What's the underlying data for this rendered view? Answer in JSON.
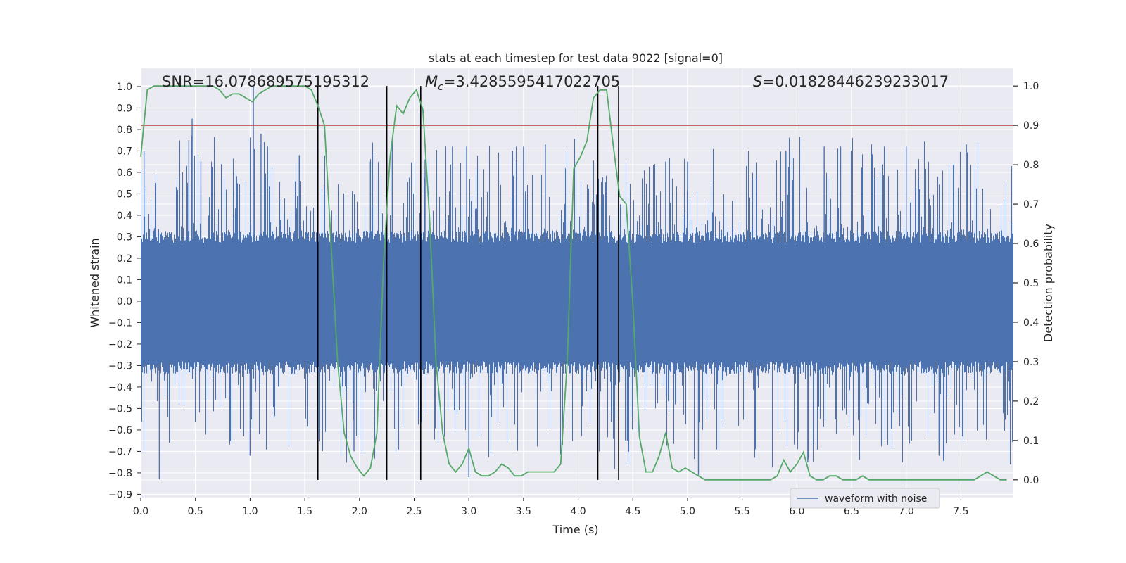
{
  "chart_data": {
    "type": "line",
    "title": "stats at each timestep for test data 9022 [signal=0]",
    "xlabel": "Time (s)",
    "ylabel_left": "Whitened strain",
    "ylabel_right": "Detection probability",
    "xlim": [
      0,
      7.98
    ],
    "ylim_left": [
      -0.915,
      1.085
    ],
    "ylim_right": [
      -0.045,
      1.045
    ],
    "grid": true,
    "x_ticks": [
      "0.0",
      "0.5",
      "1.0",
      "1.5",
      "2.0",
      "2.5",
      "3.0",
      "3.5",
      "4.0",
      "4.5",
      "5.0",
      "5.5",
      "6.0",
      "6.5",
      "7.0",
      "7.5"
    ],
    "x_tick_values": [
      0,
      0.5,
      1,
      1.5,
      2,
      2.5,
      3,
      3.5,
      4,
      4.5,
      5,
      5.5,
      6,
      6.5,
      7,
      7.5
    ],
    "y_left_ticks": [
      "1.0",
      "0.9",
      "0.8",
      "0.7",
      "0.6",
      "0.5",
      "0.4",
      "0.3",
      "0.2",
      "0.1",
      "0.0",
      "−0.1",
      "−0.2",
      "−0.3",
      "−0.4",
      "−0.5",
      "−0.6",
      "−0.7",
      "−0.8",
      "−0.9"
    ],
    "y_left_tick_values": [
      1,
      0.9,
      0.8,
      0.7,
      0.6,
      0.5,
      0.4,
      0.3,
      0.2,
      0.1,
      0,
      -0.1,
      -0.2,
      -0.3,
      -0.4,
      -0.5,
      -0.6,
      -0.7,
      -0.8,
      -0.9
    ],
    "y_right_ticks": [
      "1.0",
      "0.9",
      "0.8",
      "0.7",
      "0.6",
      "0.5",
      "0.4",
      "0.3",
      "0.2",
      "0.1",
      "0.0"
    ],
    "y_right_tick_values": [
      1,
      0.9,
      0.8,
      0.7,
      0.6,
      0.5,
      0.4,
      0.3,
      0.2,
      0.1,
      0
    ],
    "threshold": 0.9,
    "vertical_lines": [
      1.62,
      2.25,
      2.56,
      4.18,
      4.37
    ],
    "annotations": {
      "snr": {
        "prefix": "SNR=",
        "value": "16.078689575195312"
      },
      "mc": {
        "symbol": "M",
        "subscript": "c",
        "value": "=3.4285595417022705"
      },
      "s": {
        "symbol": "S",
        "value": "=0.01828446239233017"
      }
    },
    "legend": [
      {
        "label": "waveform with noise",
        "color": "#4c72b0"
      }
    ],
    "series": [
      {
        "name": "waveform with noise",
        "axis": "left",
        "color": "#4c72b0",
        "band": {
          "low": -0.28,
          "high": 0.27
        },
        "peak_spikes": [
          [
            0.03,
            0.7
          ],
          [
            0.17,
            -0.83
          ],
          [
            0.44,
            0.75
          ],
          [
            0.47,
            0.85
          ],
          [
            0.55,
            0.65
          ],
          [
            1.0,
            -0.72
          ],
          [
            1.03,
            1.0
          ],
          [
            1.1,
            0.78
          ],
          [
            1.16,
            0.72
          ],
          [
            1.45,
            0.68
          ],
          [
            2.3,
            0.75
          ],
          [
            2.6,
            0.66
          ],
          [
            2.85,
            0.72
          ],
          [
            2.98,
            0.72
          ],
          [
            3.0,
            -0.82
          ],
          [
            3.4,
            0.7
          ],
          [
            3.5,
            0.72
          ],
          [
            4.45,
            -0.65
          ],
          [
            4.8,
            0.65
          ],
          [
            5.0,
            0.65
          ],
          [
            5.1,
            -0.81
          ],
          [
            6.1,
            -0.75
          ],
          [
            6.4,
            0.72
          ],
          [
            6.8,
            0.72
          ],
          [
            7.0,
            0.72
          ],
          [
            7.3,
            -0.72
          ],
          [
            7.55,
            0.73
          ],
          [
            1.95,
            -0.7
          ],
          [
            2.1,
            0.65
          ],
          [
            3.7,
            0.73
          ],
          [
            5.9,
            0.7
          ],
          [
            6.25,
            0.72
          ]
        ]
      },
      {
        "name": "detection probability",
        "axis": "right",
        "color": "#55a868",
        "x": [
          0.0,
          0.06,
          0.12,
          0.18,
          0.24,
          0.3,
          0.36,
          0.42,
          0.48,
          0.54,
          0.6,
          0.66,
          0.72,
          0.78,
          0.84,
          0.9,
          0.96,
          1.02,
          1.08,
          1.14,
          1.2,
          1.26,
          1.32,
          1.38,
          1.44,
          1.5,
          1.56,
          1.62,
          1.68,
          1.74,
          1.8,
          1.86,
          1.92,
          1.98,
          2.04,
          2.1,
          2.16,
          2.22,
          2.28,
          2.34,
          2.4,
          2.46,
          2.52,
          2.58,
          2.64,
          2.7,
          2.76,
          2.82,
          2.88,
          2.94,
          3.0,
          3.06,
          3.12,
          3.18,
          3.24,
          3.3,
          3.36,
          3.42,
          3.48,
          3.54,
          3.6,
          3.66,
          3.72,
          3.78,
          3.84,
          3.9,
          3.96,
          4.02,
          4.08,
          4.14,
          4.2,
          4.26,
          4.32,
          4.38,
          4.44,
          4.5,
          4.56,
          4.62,
          4.68,
          4.74,
          4.8,
          4.86,
          4.92,
          4.98,
          5.04,
          5.1,
          5.16,
          5.22,
          5.28,
          5.34,
          5.4,
          5.46,
          5.52,
          5.58,
          5.64,
          5.7,
          5.76,
          5.82,
          5.88,
          5.94,
          6.0,
          6.06,
          6.12,
          6.18,
          6.24,
          6.3,
          6.36,
          6.42,
          6.48,
          6.54,
          6.6,
          6.66,
          6.72,
          6.78,
          6.84,
          6.9,
          6.96,
          7.02,
          7.08,
          7.14,
          7.2,
          7.26,
          7.32,
          7.38,
          7.44,
          7.5,
          7.56,
          7.62,
          7.68,
          7.74,
          7.8,
          7.86,
          7.92
        ],
        "y": [
          0.82,
          0.99,
          1.0,
          1.0,
          1.0,
          1.0,
          1.0,
          1.0,
          1.0,
          1.0,
          1.0,
          1.0,
          0.99,
          0.97,
          0.98,
          0.98,
          0.97,
          0.96,
          0.98,
          0.99,
          1.0,
          1.0,
          1.0,
          1.0,
          1.0,
          1.0,
          0.99,
          0.95,
          0.9,
          0.6,
          0.3,
          0.12,
          0.06,
          0.03,
          0.01,
          0.03,
          0.12,
          0.55,
          0.82,
          0.95,
          0.93,
          0.97,
          0.99,
          0.94,
          0.67,
          0.3,
          0.12,
          0.04,
          0.02,
          0.04,
          0.08,
          0.02,
          0.01,
          0.01,
          0.02,
          0.04,
          0.03,
          0.01,
          0.01,
          0.02,
          0.02,
          0.02,
          0.02,
          0.02,
          0.04,
          0.3,
          0.79,
          0.82,
          0.86,
          0.97,
          0.99,
          0.99,
          0.85,
          0.72,
          0.7,
          0.45,
          0.11,
          0.02,
          0.02,
          0.06,
          0.12,
          0.03,
          0.02,
          0.03,
          0.02,
          0.01,
          0.0,
          0.0,
          0.0,
          0.0,
          0.0,
          0.0,
          0.0,
          0.0,
          0.0,
          0.0,
          0.0,
          0.01,
          0.05,
          0.02,
          0.04,
          0.07,
          0.01,
          0.0,
          0.0,
          0.01,
          0.01,
          0.0,
          0.0,
          0.0,
          0.01,
          0.0,
          0.0,
          0.0,
          0.0,
          0.0,
          0.0,
          0.0,
          0.0,
          0.0,
          0.0,
          0.0,
          0.0,
          0.0,
          0.0,
          0.0,
          0.0,
          0.0,
          0.01,
          0.02,
          0.01,
          0.0,
          0.0
        ]
      }
    ]
  }
}
